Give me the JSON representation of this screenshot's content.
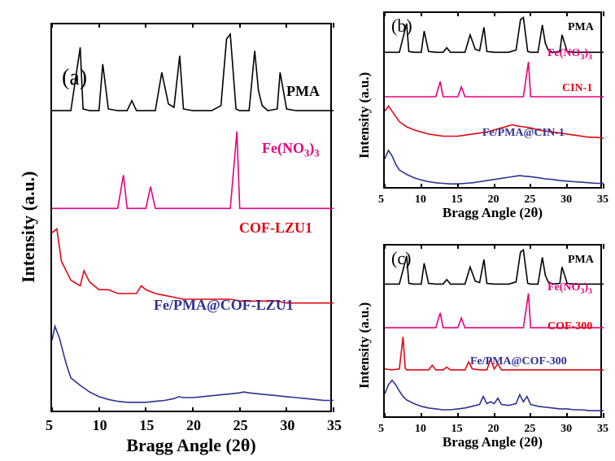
{
  "panel_a": {
    "label": "(a)",
    "label_fontsize": 28,
    "xlabel": "Bragg Angle (2θ)",
    "ylabel": "Intensity (a.u.)",
    "axis_label_fontsize": 22,
    "tick_fontsize": 18,
    "xlim": [
      5,
      35
    ],
    "xticks": [
      5,
      10,
      15,
      20,
      25,
      30,
      35
    ],
    "series": [
      {
        "name": "PMA",
        "color": "#000000",
        "label": "PMA",
        "label_x": 28,
        "label_y_offset": 0,
        "x": [
          5,
          6,
          7,
          8,
          8.3,
          9,
          10,
          10.4,
          11,
          12,
          13,
          13.5,
          14,
          15,
          16,
          16.7,
          17.4,
          18,
          18.6,
          19,
          20,
          21,
          22,
          23,
          23.6,
          24,
          24.6,
          25,
          26,
          26.6,
          27,
          27.4,
          28,
          29,
          29.3,
          30,
          31,
          32,
          33,
          34,
          35
        ],
        "y": [
          2,
          2,
          2,
          40,
          3,
          2,
          2,
          30,
          3,
          2,
          2,
          8,
          2,
          2,
          2,
          25,
          6,
          4,
          35,
          3,
          2,
          2,
          2,
          5,
          45,
          48,
          3,
          2,
          2,
          38,
          14,
          5,
          2,
          3,
          25,
          3,
          2,
          2,
          2,
          2,
          2
        ]
      },
      {
        "name": "FeNO3",
        "color": "#e6007e",
        "label": "Fe(NO₃)₃",
        "label_x": 28,
        "label_y_offset": 0,
        "x": [
          5,
          6,
          7,
          8,
          9,
          10,
          11,
          12,
          12.6,
          13,
          14,
          15,
          15.5,
          16,
          17,
          18,
          19,
          20,
          21,
          22,
          23,
          24,
          24.7,
          25,
          26,
          27,
          28,
          29,
          30,
          31,
          32,
          33,
          34,
          35
        ],
        "y": [
          2,
          2,
          2,
          2,
          2,
          2,
          2,
          2,
          25,
          2,
          2,
          2,
          17,
          2,
          2,
          2,
          2,
          2,
          2,
          2,
          2,
          2,
          55,
          2,
          2,
          2,
          2,
          2,
          2,
          2,
          2,
          2,
          2,
          2
        ]
      },
      {
        "name": "COF-LZU1",
        "color": "#e30613",
        "label": "COF-LZU1",
        "label_x": 22,
        "label_y_offset": 0,
        "x": [
          5,
          5.5,
          6,
          7,
          8,
          8.4,
          9,
          10,
          11,
          12,
          13,
          14,
          14.5,
          15,
          16,
          17,
          18,
          19,
          20,
          21,
          22,
          23,
          24,
          25,
          26,
          27,
          28,
          29,
          30,
          31,
          32,
          33,
          34,
          35
        ],
        "y": [
          40,
          42,
          25,
          15,
          12,
          20,
          14,
          10,
          10,
          8,
          8,
          8,
          12,
          10,
          8,
          7,
          6,
          5,
          5,
          5,
          5,
          5,
          5,
          4,
          4,
          4,
          4,
          4,
          3,
          3,
          3,
          3,
          3,
          3
        ]
      },
      {
        "name": "FePMACOF",
        "color": "#2e3192",
        "label": "Fe/PMA@COF-LZU1",
        "label_x": 15,
        "label_y_offset": 0,
        "x": [
          5,
          5.3,
          5.8,
          6.5,
          7,
          8,
          9,
          10,
          11,
          12,
          13,
          14,
          15,
          16,
          17,
          18,
          18.5,
          19,
          20,
          21,
          22,
          23,
          24,
          25,
          25.4,
          26,
          27,
          28,
          29,
          30,
          31,
          32,
          33,
          34,
          35
        ],
        "y": [
          70,
          85,
          72,
          45,
          30,
          22,
          15,
          10,
          7,
          5,
          4,
          4,
          4,
          5,
          6,
          8,
          10,
          9,
          9,
          10,
          11,
          12,
          13,
          14,
          15,
          14,
          13,
          12,
          11,
          10,
          9,
          8,
          7,
          6,
          6
        ]
      }
    ],
    "series_label_fontsize": 18
  },
  "panel_b": {
    "label": "(b)",
    "label_fontsize": 22,
    "xlabel": "Bragg Angle (2θ)",
    "ylabel": "Intensity (a.u.)",
    "axis_label_fontsize": 17,
    "tick_fontsize": 14,
    "xlim": [
      5,
      35
    ],
    "xticks": [
      5,
      10,
      15,
      20,
      25,
      30,
      35
    ],
    "series": [
      {
        "name": "PMA",
        "color": "#000000",
        "label": "PMA",
        "x": [
          5,
          6,
          7,
          8,
          8.3,
          9,
          10,
          10.4,
          11,
          12,
          13,
          13.5,
          14,
          15,
          16,
          16.7,
          17.4,
          18,
          18.6,
          19,
          20,
          21,
          22,
          23,
          23.6,
          24,
          24.6,
          25,
          26,
          26.6,
          27,
          27.4,
          28,
          29,
          29.3,
          30,
          31,
          32,
          33,
          34,
          35
        ],
        "y": [
          2,
          2,
          2,
          40,
          3,
          2,
          2,
          30,
          3,
          2,
          2,
          8,
          2,
          2,
          2,
          25,
          6,
          4,
          35,
          3,
          2,
          2,
          2,
          5,
          45,
          48,
          3,
          2,
          2,
          38,
          14,
          5,
          2,
          3,
          25,
          3,
          2,
          2,
          2,
          2,
          2
        ]
      },
      {
        "name": "FeNO3",
        "color": "#e6007e",
        "label": "Fe(NO₃)₃",
        "x": [
          5,
          6,
          7,
          8,
          9,
          10,
          11,
          12,
          12.6,
          13,
          14,
          15,
          15.5,
          16,
          17,
          18,
          19,
          20,
          21,
          22,
          23,
          24,
          24.7,
          25,
          26,
          27,
          28,
          29,
          30,
          31,
          32,
          33,
          34,
          35
        ],
        "y": [
          2,
          2,
          2,
          2,
          2,
          2,
          2,
          2,
          25,
          2,
          2,
          2,
          17,
          2,
          2,
          2,
          2,
          2,
          2,
          2,
          2,
          2,
          55,
          2,
          2,
          2,
          2,
          2,
          2,
          2,
          2,
          2,
          2,
          2
        ]
      },
      {
        "name": "CIN-1",
        "color": "#e30613",
        "label": "CIN-1",
        "x": [
          5,
          5.5,
          6,
          7,
          8,
          9,
          10,
          11,
          12,
          13,
          14,
          15,
          16,
          17,
          18,
          19,
          20,
          21,
          22,
          22.5,
          23,
          24,
          25,
          26,
          27,
          28,
          29,
          30,
          31,
          32,
          33,
          34,
          35
        ],
        "y": [
          30,
          35,
          30,
          20,
          15,
          12,
          10,
          8,
          7,
          6,
          6,
          6,
          7,
          8,
          9,
          10,
          12,
          14,
          16,
          17,
          16,
          15,
          14,
          12,
          11,
          10,
          9,
          8,
          7,
          6,
          5,
          5,
          4
        ]
      },
      {
        "name": "FePMACIN",
        "color": "#2e3192",
        "label": "Fe/PMA@CIN-1",
        "x": [
          5,
          5.5,
          6,
          6.5,
          7,
          8,
          9,
          10,
          11,
          12,
          13,
          14,
          15,
          16,
          17,
          18,
          19,
          20,
          21,
          22,
          23,
          23.5,
          24,
          25,
          26,
          27,
          28,
          29,
          30,
          31,
          32,
          33,
          34,
          35
        ],
        "y": [
          50,
          65,
          55,
          40,
          30,
          22,
          16,
          12,
          9,
          7,
          6,
          5,
          5,
          6,
          7,
          9,
          11,
          13,
          15,
          17,
          19,
          20,
          19,
          18,
          16,
          14,
          13,
          11,
          10,
          9,
          8,
          7,
          6,
          6
        ]
      }
    ],
    "series_label_fontsize": 14
  },
  "panel_c": {
    "label": "(c)",
    "label_fontsize": 22,
    "xlabel": "Bragg Angle (2θ)",
    "ylabel": "Intensity (a.u.)",
    "axis_label_fontsize": 17,
    "tick_fontsize": 14,
    "xlim": [
      5,
      35
    ],
    "xticks": [
      5,
      10,
      15,
      20,
      25,
      30,
      35
    ],
    "series": [
      {
        "name": "PMA",
        "color": "#000000",
        "label": "PMA",
        "x": [
          5,
          6,
          7,
          8,
          8.3,
          9,
          10,
          10.4,
          11,
          12,
          13,
          13.5,
          14,
          15,
          16,
          16.7,
          17.4,
          18,
          18.6,
          19,
          20,
          21,
          22,
          23,
          23.6,
          24,
          24.6,
          25,
          26,
          26.6,
          27,
          27.4,
          28,
          29,
          29.3,
          30,
          31,
          32,
          33,
          34,
          35
        ],
        "y": [
          2,
          2,
          2,
          40,
          3,
          2,
          2,
          30,
          3,
          2,
          2,
          8,
          2,
          2,
          2,
          25,
          6,
          4,
          35,
          3,
          2,
          2,
          2,
          5,
          45,
          48,
          3,
          2,
          2,
          38,
          14,
          5,
          2,
          3,
          25,
          3,
          2,
          2,
          2,
          2,
          2
        ]
      },
      {
        "name": "FeNO3",
        "color": "#e6007e",
        "label": "Fe(NO₃)₃",
        "x": [
          5,
          6,
          7,
          8,
          9,
          10,
          11,
          12,
          12.6,
          13,
          14,
          15,
          15.5,
          16,
          17,
          18,
          19,
          20,
          21,
          22,
          23,
          24,
          24.7,
          25,
          26,
          27,
          28,
          29,
          30,
          31,
          32,
          33,
          34,
          35
        ],
        "y": [
          2,
          2,
          2,
          2,
          2,
          2,
          2,
          2,
          25,
          2,
          2,
          2,
          17,
          2,
          2,
          2,
          2,
          2,
          2,
          2,
          2,
          2,
          55,
          2,
          2,
          2,
          2,
          2,
          2,
          2,
          2,
          2,
          2,
          2
        ]
      },
      {
        "name": "COF-300",
        "color": "#e30613",
        "label": "COF-300",
        "x": [
          5,
          6,
          7,
          7.5,
          7.8,
          8,
          9,
          10,
          11,
          11.5,
          12,
          13,
          13.5,
          14,
          15,
          16,
          16.5,
          17,
          18,
          19,
          19.5,
          20,
          20.5,
          21,
          22,
          23,
          24,
          25,
          26,
          27,
          28,
          29,
          30,
          31,
          32,
          33,
          34,
          35
        ],
        "y": [
          4,
          3,
          4,
          40,
          5,
          3,
          3,
          3,
          3,
          8,
          3,
          3,
          6,
          3,
          3,
          3,
          12,
          4,
          3,
          3,
          15,
          4,
          10,
          3,
          3,
          3,
          3,
          3,
          3,
          3,
          3,
          3,
          3,
          3,
          3,
          3,
          3,
          3
        ]
      },
      {
        "name": "FePMACOF300",
        "color": "#2e3192",
        "label": "Fe/PMA@COF-300",
        "x": [
          5,
          5.5,
          6,
          6.5,
          7,
          7.5,
          8,
          9,
          10,
          11,
          12,
          13,
          14,
          15,
          16,
          17,
          18,
          18.5,
          19,
          19.5,
          20,
          20.5,
          21,
          22,
          23,
          23.5,
          24,
          24.5,
          25,
          26,
          27,
          28,
          29,
          30,
          31,
          32,
          33,
          34,
          35
        ],
        "y": [
          25,
          35,
          40,
          35,
          28,
          22,
          18,
          14,
          11,
          9,
          8,
          7,
          7,
          8,
          9,
          11,
          13,
          22,
          14,
          16,
          14,
          20,
          13,
          12,
          14,
          24,
          16,
          22,
          13,
          11,
          10,
          9,
          8,
          8,
          7,
          7,
          6,
          6,
          6
        ]
      }
    ],
    "series_label_fontsize": 14
  },
  "colors": {
    "bg": "#ffffff",
    "axis": "#000000"
  },
  "line_width": 1.6
}
